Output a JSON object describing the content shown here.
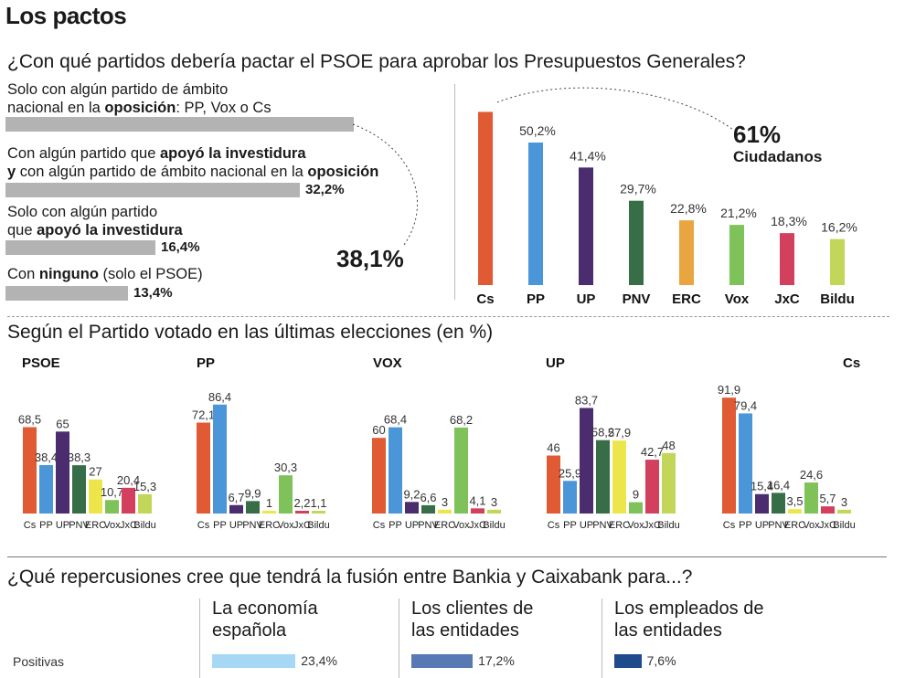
{
  "title": "Los pactos",
  "q1": {
    "question": "¿Con qué partidos debería pactar el PSOE para aprobar los Presupuestos Generales?",
    "options": [
      {
        "line1_parts": [
          "Solo con algún partido de ámbito"
        ],
        "line2": "nacional en la",
        "line2_bold": "oposición",
        "line2_rest": ": PP, Vox o Cs",
        "value": 38.1,
        "label": ""
      },
      {
        "line1": "Con algún partido que ",
        "line1_bold": "apoyó la investidura",
        "line2_a": "y",
        "line2_b": " con algún partido de ámbito nacional en la ",
        "line2_bold": "oposición",
        "value": 32.2,
        "label": "32,2%"
      },
      {
        "line1": "Solo con algún partido",
        "line2": "que ",
        "line2_bold": "apoyó la investidura",
        "value": 16.4,
        "label": "16,4%"
      },
      {
        "line1": "Con ",
        "line1_bold": "ninguno",
        "line1_rest": " (solo el PSOE)",
        "value": 13.4,
        "label": "13,4%"
      }
    ],
    "highlight": "38,1%"
  },
  "chart_data": [
    {
      "type": "bar",
      "title": "¿Con qué partidos debería pactar el PSOE para aprobar los Presupuestos Generales?",
      "categories": [
        "Cs",
        "PP",
        "UP",
        "PNV",
        "ERC",
        "Vox",
        "JxC",
        "Bildu"
      ],
      "values": [
        61,
        50.2,
        41.4,
        29.7,
        22.8,
        21.2,
        18.3,
        16.2
      ],
      "labels": [
        "",
        "50,2%",
        "41,4%",
        "29,7%",
        "22,8%",
        "21,2%",
        "18,3%",
        "16,2%"
      ],
      "callout_value": "61%",
      "callout_label": "Ciudadanos",
      "ylim": [
        0,
        65
      ]
    },
    {
      "type": "bar",
      "title": "Según el Partido votado en las últimas elecciones (en %)",
      "categories": [
        "Cs",
        "PP",
        "UP",
        "PNV",
        "ERC",
        "Vox",
        "JxC",
        "Bildu"
      ],
      "ylim": [
        0,
        100
      ],
      "groups": [
        {
          "name": "PSOE",
          "values": [
            68.5,
            38.4,
            65,
            38.3,
            27,
            10.7,
            20.4,
            15.3
          ],
          "labels": [
            "68,5",
            "38,4",
            "65",
            "38,3",
            "27",
            "10,7",
            "20,4",
            "15,3"
          ]
        },
        {
          "name": "PP",
          "values": [
            72.1,
            86.4,
            6.7,
            9.9,
            1,
            30.3,
            2.2,
            1.1
          ],
          "labels": [
            "72,1",
            "86,4",
            "6,7",
            "9,9",
            "1",
            "30,3",
            "2,2",
            "1,1"
          ]
        },
        {
          "name": "VOX",
          "values": [
            60,
            68.4,
            9.2,
            6.6,
            3,
            68.2,
            4.1,
            3
          ],
          "labels": [
            "60",
            "68,4",
            "9,2",
            "6,6",
            "3",
            "68,2",
            "4,1",
            "3"
          ]
        },
        {
          "name": "UP",
          "values": [
            46,
            25.9,
            83.7,
            58.2,
            57.9,
            9,
            42.7,
            48
          ],
          "labels": [
            "46",
            "25,9",
            "83,7",
            "58,2",
            "57,9",
            "9",
            "42,7",
            "48"
          ]
        },
        {
          "name": "Cs",
          "values": [
            91.9,
            79.4,
            15.4,
            16.4,
            3.5,
            24.6,
            5.7,
            3
          ],
          "labels": [
            "91,9",
            "79,4",
            "15,4",
            "16,4",
            "3,5",
            "24,6",
            "5,7",
            "3"
          ]
        }
      ]
    },
    {
      "type": "bar",
      "title": "¿Qué repercusiones cree que tendrá la fusión entre Bankia y Caixabank para...?",
      "categories": [
        "La economía española",
        "Los clientes de las entidades",
        "Los empleados de las entidades"
      ],
      "series": [
        {
          "name": "Positivas",
          "values": [
            23.4,
            17.2,
            7.6
          ],
          "labels": [
            "23,4%",
            "17,2%",
            "7,6%"
          ]
        }
      ]
    }
  ],
  "colors": {
    "Cs": "#e05a33",
    "PP": "#4a96d8",
    "UP": "#4b2c6f",
    "PNV": "#376e48",
    "ERC": "#e9a540",
    "Vox": "#7fc25a",
    "JxC": "#d2405e",
    "Bildu": "#c2d65a",
    "ERC_small": "#ece64c",
    "hbar": "#b3b3b3",
    "pos": [
      "#a6d8f5",
      "#5779b4",
      "#1f4a8c"
    ]
  },
  "q2": {
    "heading": "Según el Partido votado en las últimas elecciones (en %)"
  },
  "q3": {
    "question": "¿Qué repercusiones cree que tendrá la fusión entre Bankia y Caixabank para...?",
    "row_label": "Positivas",
    "heads": [
      {
        "l1": "La economía",
        "l2": "española",
        "label": "23,4%"
      },
      {
        "l1": "Los clientes de",
        "l2": "las entidades",
        "label": "17,2%"
      },
      {
        "l1": "Los empleados de",
        "l2": "las entidades",
        "label": "7,6%"
      }
    ]
  }
}
